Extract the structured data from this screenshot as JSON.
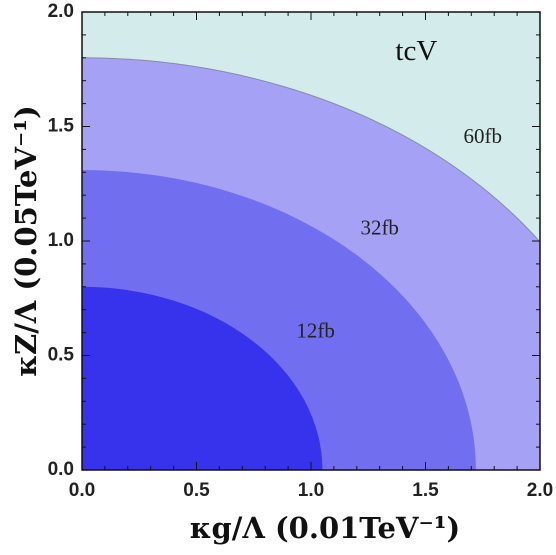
{
  "chart_data": {
    "type": "area",
    "title": "",
    "xlabel": "κg/Λ (0.01TeV⁻¹)",
    "ylabel": "κZ/Λ (0.05TeV⁻¹)",
    "xlim": [
      0.0,
      2.0
    ],
    "ylim": [
      0.0,
      2.0
    ],
    "x_ticks": [
      "0.0",
      "0.5",
      "1.0",
      "1.5",
      "2.0"
    ],
    "y_ticks": [
      "0.0",
      "0.5",
      "1.0",
      "1.5",
      "2.0"
    ],
    "grid": false,
    "annotation": "tcV",
    "regions": [
      {
        "label": "60fb",
        "x_intercept": 2.4,
        "y_intercept": 1.8,
        "color": "#a5a2f5",
        "label_at": [
          1.75,
          1.45
        ]
      },
      {
        "label": "32fb",
        "x_intercept": 1.72,
        "y_intercept": 1.31,
        "color": "#716ef0",
        "label_at": [
          1.3,
          1.05
        ]
      },
      {
        "label": "12fb",
        "x_intercept": 1.05,
        "y_intercept": 0.8,
        "color": "#3733ec",
        "label_at": [
          1.02,
          0.6
        ]
      }
    ],
    "background_color": "#d3ebeb",
    "outer_boundary_color": "#8888aa"
  }
}
